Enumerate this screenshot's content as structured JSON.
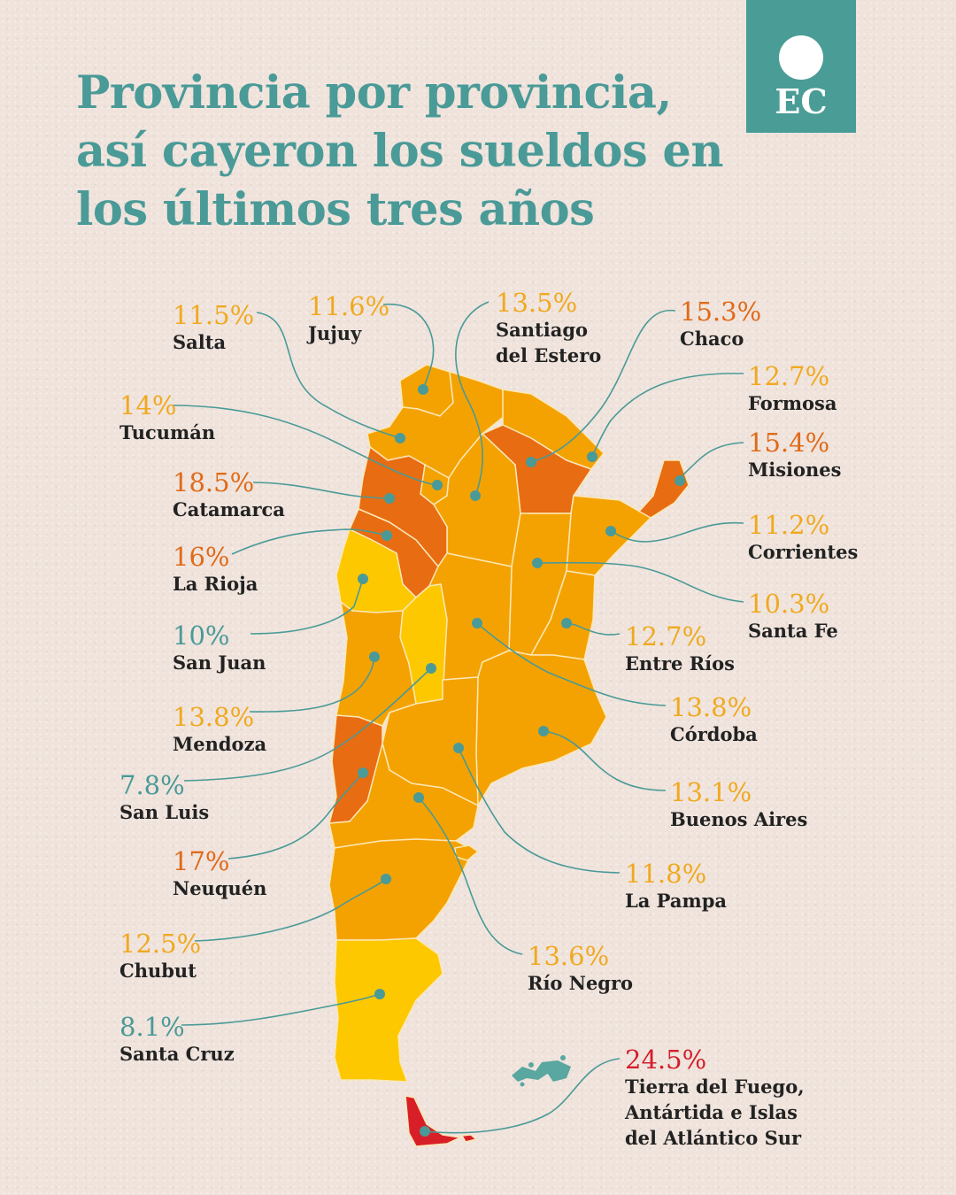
{
  "title": "Provincia por provincia, así cayeron los sueldos en los últimos tres años",
  "logo": {
    "text": "EC"
  },
  "colors": {
    "teal": "#4a9a97",
    "yellow_pct": "#f0a91f",
    "orange_pct": "#e06a18",
    "red_pct": "#d31f2a",
    "map_yellow": "#fdc800",
    "map_orange": "#f4a201",
    "map_dark_orange": "#e86c12",
    "map_red": "#d81f28",
    "falklands": "#5aa6a0"
  },
  "provinces": {
    "salta": {
      "pct": "11.5%",
      "name": "Salta"
    },
    "jujuy": {
      "pct": "11.6%",
      "name": "Jujuy"
    },
    "santiago": {
      "pct": "13.5%",
      "name": "Santiago del Estero"
    },
    "chaco": {
      "pct": "15.3%",
      "name": "Chaco"
    },
    "formosa": {
      "pct": "12.7%",
      "name": "Formosa"
    },
    "misiones": {
      "pct": "15.4%",
      "name": "Misiones"
    },
    "tucuman": {
      "pct": "14%",
      "name": "Tucumán"
    },
    "catamarca": {
      "pct": "18.5%",
      "name": "Catamarca"
    },
    "larioja": {
      "pct": "16%",
      "name": "La Rioja"
    },
    "corrientes": {
      "pct": "11.2%",
      "name": "Corrientes"
    },
    "santafe": {
      "pct": "10.3%",
      "name": "Santa Fe"
    },
    "sanjuan": {
      "pct": "10%",
      "name": "San Juan"
    },
    "entrerios": {
      "pct": "12.7%",
      "name": "Entre Ríos"
    },
    "mendoza": {
      "pct": "13.8%",
      "name": "Mendoza"
    },
    "cordoba": {
      "pct": "13.8%",
      "name": "Córdoba"
    },
    "sanluis": {
      "pct": "7.8%",
      "name": "San Luis"
    },
    "buenosaires": {
      "pct": "13.1%",
      "name": "Buenos Aires"
    },
    "neuquen": {
      "pct": "17%",
      "name": "Neuquén"
    },
    "lapampa": {
      "pct": "11.8%",
      "name": "La Pampa"
    },
    "chubut": {
      "pct": "12.5%",
      "name": "Chubut"
    },
    "rionegro": {
      "pct": "13.6%",
      "name": "Río Negro"
    },
    "santacruz": {
      "pct": "8.1%",
      "name": "Santa Cruz"
    },
    "tdf": {
      "pct": "24.5%",
      "name_line1": "Tierra del Fuego,",
      "name_line2": "Antártida e Islas",
      "name_line3": "del Atlántico Sur"
    }
  }
}
